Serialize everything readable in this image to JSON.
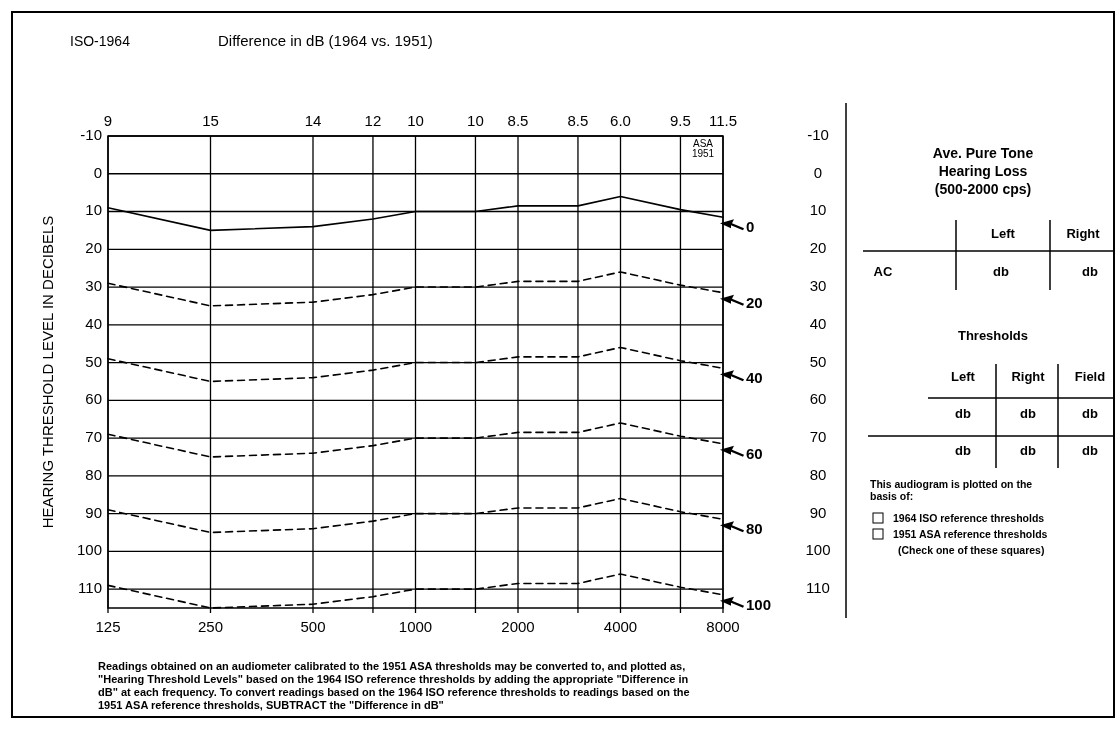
{
  "chart_data": [
    {
      "type": "line",
      "title": "ISO-1964",
      "x2label": "Difference in dB (1964 vs. 1951)",
      "ylabel": "HEARING THRESHOLD LEVEL IN DECIBELS",
      "log": "x",
      "x": [
        125,
        250,
        500,
        750,
        1000,
        1500,
        2000,
        3000,
        4000,
        6000,
        8000
      ],
      "xlim": [
        125,
        8000
      ],
      "xticks": [
        125,
        250,
        500,
        {
          "value": 750,
          "label": null
        },
        1000,
        {
          "value": 1500,
          "label": null
        },
        2000,
        {
          "value": 3000,
          "label": null
        },
        4000,
        {
          "value": 6000,
          "label": null
        },
        8000
      ],
      "ylim": [
        115,
        -10
      ],
      "yticks": [
        -10,
        0,
        10,
        20,
        30,
        40,
        50,
        60,
        70,
        80,
        90,
        100,
        110
      ],
      "y2lim": [
        115,
        -10
      ],
      "y2ticks": [
        -10,
        0,
        10,
        20,
        30,
        40,
        50,
        60,
        70,
        80,
        90,
        100,
        110
      ],
      "grid": true,
      "legend": "right",
      "series": [
        {
          "name": "0",
          "color": "#000000",
          "line_style": "solid",
          "values": [
            9,
            15,
            14,
            12,
            10,
            10,
            8.5,
            8.5,
            6,
            9.5,
            11.5
          ]
        },
        {
          "name": "20",
          "color": "#000000",
          "line_style": "dashed",
          "values": [
            29,
            35,
            34,
            32,
            30,
            30,
            28.5,
            28.5,
            26,
            29.5,
            31.5
          ]
        },
        {
          "name": "40",
          "color": "#000000",
          "line_style": "dashed",
          "values": [
            49,
            55,
            54,
            52,
            50,
            50,
            48.5,
            48.5,
            46,
            49.5,
            51.5
          ]
        },
        {
          "name": "60",
          "color": "#000000",
          "line_style": "dashed",
          "values": [
            69,
            75,
            74,
            72,
            70,
            70,
            68.5,
            68.5,
            66,
            69.5,
            71.5
          ]
        },
        {
          "name": "80",
          "color": "#000000",
          "line_style": "dashed",
          "values": [
            89,
            95,
            94,
            92,
            90,
            90,
            88.5,
            88.5,
            86,
            89.5,
            91.5
          ]
        },
        {
          "name": "100",
          "color": "#000000",
          "line_style": "dashed",
          "values": [
            109,
            115,
            114,
            112,
            110,
            110,
            108.5,
            108.5,
            106,
            109.5,
            111.5
          ]
        }
      ],
      "annotations": [
        "ASA 1951",
        "Readings obtained on an audiometer calibrated to the 1951 ASA thresholds may be converted to, and plotted as, \"Hearing Threshold Levels\" based on the 1964 ISO reference thresholds by adding the appropriate \"Difference in dB\" at each frequency. To convert readings based on the 1964 ISO reference thresholds to readings based on the 1951 ASA reference thresholds, SUBTRACT the \"Difference in dB\"",
        "9",
        "15",
        "14",
        "12",
        "10",
        "10",
        "8.5",
        "8.5",
        "6.0",
        "9.5",
        "11.5"
      ]
    },
    {
      "type": "other",
      "title": "Ave. Pure Tone Hearing Loss (500-2000 cps)",
      "annotations": [
        "Left",
        "Right",
        "AC",
        "db",
        "db",
        "Thresholds",
        "Left",
        "Right",
        "Field",
        "db",
        "db",
        "db",
        "db",
        "db",
        "db",
        "This audiogram is plotted on the basis of:",
        "1964 ISO reference thresholds",
        "1951 ASA reference thresholds",
        "(Check one of these squares)"
      ]
    }
  ]
}
